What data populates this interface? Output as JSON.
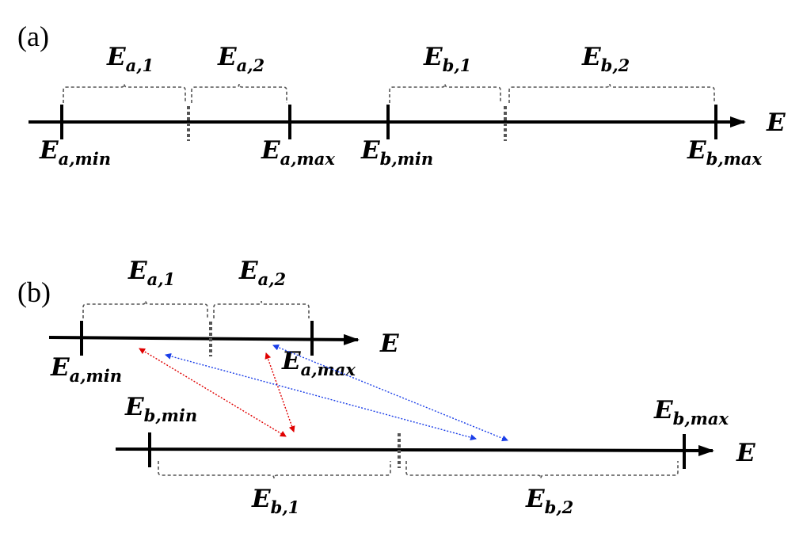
{
  "panel_a": {
    "tag": "(a)",
    "axis_label": "E",
    "segments": [
      {
        "base": "E",
        "sub": "a,1"
      },
      {
        "base": "E",
        "sub": "a,2"
      },
      {
        "base": "E",
        "sub": "b,1"
      },
      {
        "base": "E",
        "sub": "b,2"
      }
    ],
    "ticks": [
      {
        "base": "E",
        "sub": "a,min"
      },
      {
        "base": "E",
        "sub": "a,max"
      },
      {
        "base": "E",
        "sub": "b,min"
      },
      {
        "base": "E",
        "sub": "b,max"
      }
    ]
  },
  "panel_b": {
    "tag": "(b)",
    "upper": {
      "axis_label": "E",
      "segments": [
        {
          "base": "E",
          "sub": "a,1"
        },
        {
          "base": "E",
          "sub": "a,2"
        }
      ],
      "ticks": [
        {
          "base": "E",
          "sub": "a,min"
        },
        {
          "base": "E",
          "sub": "a,max"
        }
      ]
    },
    "lower": {
      "axis_label": "E",
      "segments": [
        {
          "base": "E",
          "sub": "b,1"
        },
        {
          "base": "E",
          "sub": "b,2"
        }
      ],
      "ticks": [
        {
          "base": "E",
          "sub": "b,min"
        },
        {
          "base": "E",
          "sub": "b,max"
        }
      ]
    },
    "links": [
      {
        "color": "#e00000"
      },
      {
        "color": "#e00000"
      },
      {
        "color": "#1a3ee8"
      },
      {
        "color": "#1a3ee8"
      }
    ]
  }
}
